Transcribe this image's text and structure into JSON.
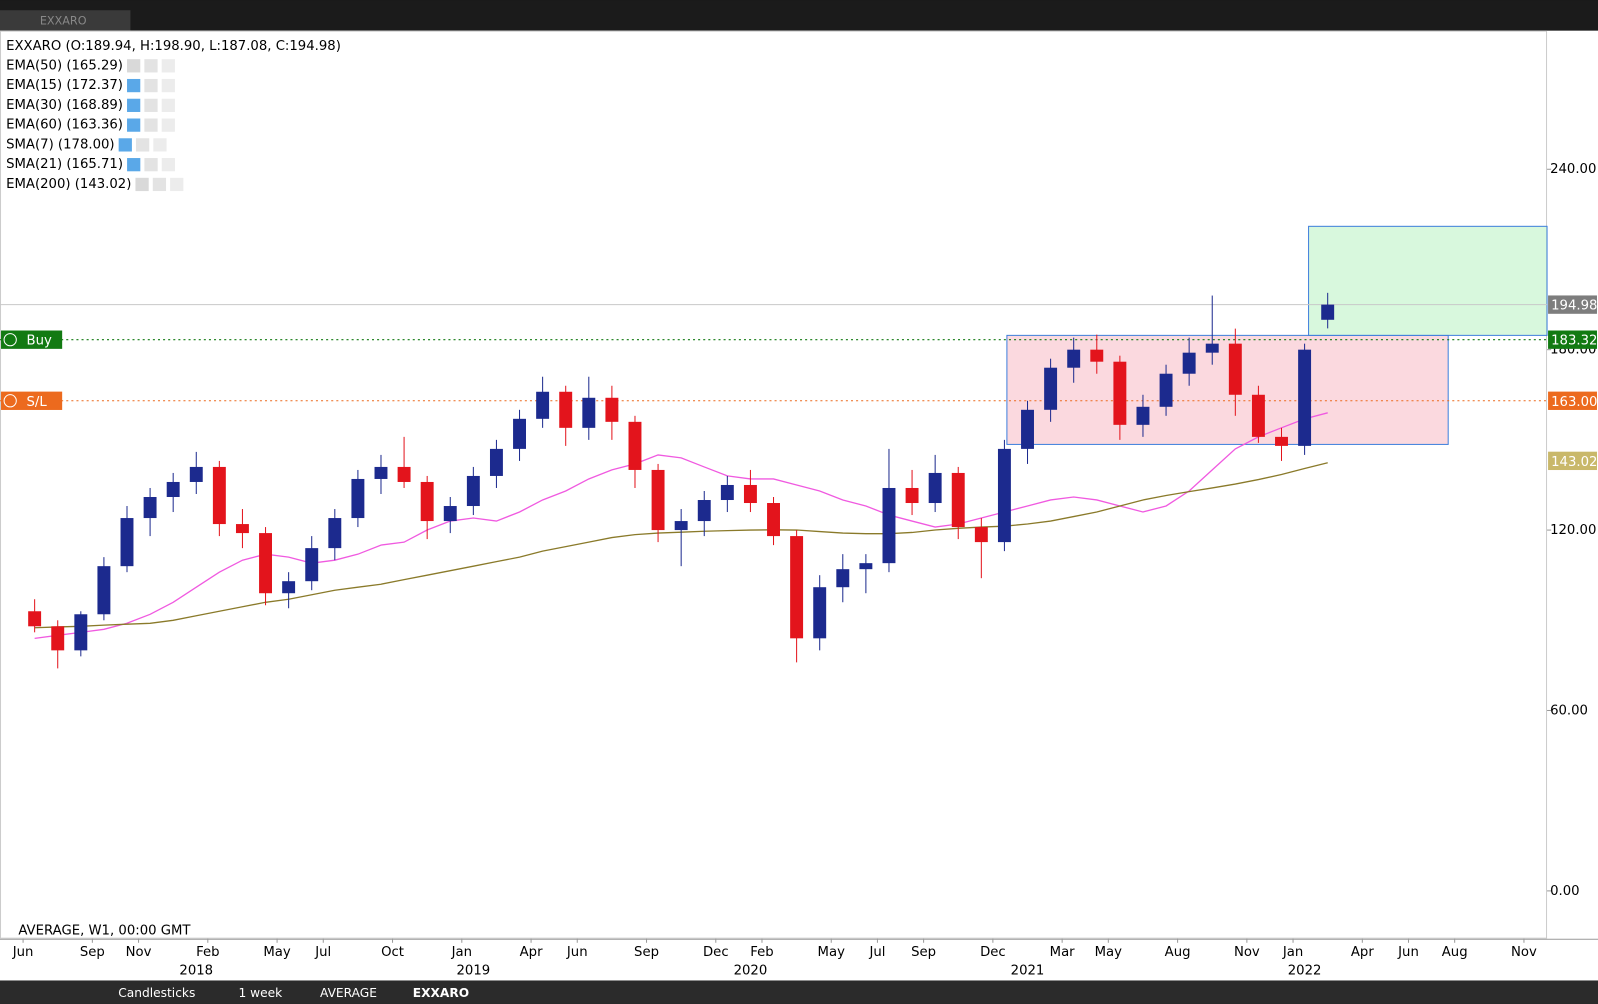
{
  "tab": "EXXARO",
  "chart_data": {
    "type": "candlestick",
    "header": "EXXARO (O:189.94, H:198.90, L:187.08, C:194.98)",
    "indicators": [
      "EMA(50) (165.29)",
      "EMA(15) (172.37)",
      "EMA(30) (168.89)",
      "EMA(60) (163.36)",
      "SMA(7) (178.00)",
      "SMA(21) (165.71)",
      "EMA(200) (143.02)"
    ],
    "footer": "AVERAGE, W1, 00:00 GMT",
    "up_color": "#1c2a8e",
    "down_color": "#e3141c",
    "x": [
      "2017-06",
      "2017-07",
      "2017-08",
      "2017-09",
      "2017-10",
      "2017-11",
      "2017-12",
      "2018-01",
      "2018-02",
      "2018-03",
      "2018-04",
      "2018-05",
      "2018-06",
      "2018-07",
      "2018-08",
      "2018-09",
      "2018-10",
      "2018-11",
      "2018-12",
      "2019-01",
      "2019-02",
      "2019-03",
      "2019-04",
      "2019-05",
      "2019-06",
      "2019-07",
      "2019-08",
      "2019-09",
      "2019-10",
      "2019-11",
      "2019-12",
      "2020-01",
      "2020-02",
      "2020-03",
      "2020-04",
      "2020-05",
      "2020-06",
      "2020-07",
      "2020-08",
      "2020-09",
      "2020-10",
      "2020-11",
      "2020-12",
      "2021-01",
      "2021-02",
      "2021-03",
      "2021-04",
      "2021-05",
      "2021-06",
      "2021-07",
      "2021-08",
      "2021-09",
      "2021-10",
      "2021-11",
      "2021-12",
      "2022-01",
      "2022-02"
    ],
    "open": [
      93,
      88,
      80,
      92,
      108,
      124,
      131,
      136,
      141,
      122,
      119,
      99,
      103,
      114,
      124,
      137,
      141,
      136,
      123,
      128,
      138,
      147,
      157,
      166,
      154,
      164,
      156,
      140,
      120,
      123,
      130,
      135,
      129,
      118,
      84,
      101,
      107,
      109,
      134,
      129,
      139,
      121,
      116,
      147,
      160,
      174,
      180,
      176,
      155,
      161,
      172,
      179,
      182,
      165,
      151,
      148,
      189.94
    ],
    "high": [
      97,
      90,
      93,
      111,
      128,
      134,
      139,
      146,
      143,
      127,
      121,
      106,
      118,
      127,
      140,
      145,
      151,
      138,
      131,
      141,
      150,
      160,
      171,
      168,
      171,
      168,
      158,
      142,
      127,
      133,
      138,
      140,
      131,
      120,
      105,
      112,
      112,
      147,
      140,
      145,
      141,
      124,
      150,
      163,
      177,
      184,
      185,
      178,
      165,
      175,
      184,
      198,
      187,
      168,
      154,
      182,
      198.9
    ],
    "low": [
      86,
      74,
      78,
      90,
      106,
      118,
      126,
      132,
      118,
      114,
      95,
      94,
      100,
      110,
      121,
      132,
      134,
      117,
      119,
      125,
      134,
      143,
      154,
      148,
      150,
      150,
      134,
      116,
      108,
      118,
      126,
      126,
      115,
      76,
      80,
      96,
      99,
      106,
      125,
      126,
      117,
      104,
      113,
      142,
      156,
      169,
      172,
      150,
      151,
      158,
      168,
      175,
      158,
      149,
      143,
      145,
      187.08
    ],
    "close": [
      88,
      80,
      92,
      108,
      124,
      131,
      136,
      141,
      122,
      119,
      99,
      103,
      114,
      124,
      137,
      141,
      136,
      123,
      128,
      138,
      147,
      157,
      166,
      154,
      164,
      156,
      140,
      120,
      123,
      130,
      135,
      129,
      118,
      84,
      101,
      107,
      109,
      134,
      129,
      139,
      121,
      116,
      147,
      160,
      174,
      180,
      176,
      155,
      161,
      172,
      179,
      182,
      165,
      151,
      148,
      180,
      194.98
    ],
    "lines": [
      {
        "name": "EMA(50) (165.29)",
        "color": "#f05ae0",
        "values": [
          84,
          85,
          86,
          87,
          89,
          92,
          96,
          101,
          106,
          110,
          112,
          111,
          109,
          110,
          112,
          115,
          116,
          120,
          123,
          124,
          123,
          126,
          130,
          133,
          137,
          140,
          142,
          145,
          144,
          141,
          138,
          137,
          137,
          135,
          133,
          130,
          128,
          125,
          123,
          121,
          122,
          124,
          126,
          128,
          130,
          131,
          130,
          128,
          126,
          128,
          133,
          140,
          147,
          151,
          154,
          157,
          159
        ]
      },
      {
        "name": "EMA(200) (143.02)",
        "color": "#8a7a2a",
        "values": [
          87.5,
          87.8,
          88,
          88.4,
          88.7,
          89,
          90,
          91.5,
          93,
          94.5,
          96,
          97,
          98.5,
          100,
          101,
          102,
          103.5,
          105,
          106.5,
          108,
          109.5,
          111,
          113,
          114.5,
          116,
          117.5,
          118.5,
          119,
          119.3,
          119.6,
          119.8,
          120,
          120.1,
          120,
          119.5,
          119,
          118.8,
          118.8,
          119.2,
          120,
          120.6,
          121,
          121.3,
          122,
          123,
          124.5,
          126,
          128,
          130,
          131.5,
          132.8,
          134,
          135.3,
          136.8,
          138.5,
          140.5,
          142.4
        ]
      }
    ],
    "xlim": [
      "2017-05",
      "2022-12"
    ],
    "xticks": [
      {
        "value": "2017-06",
        "label": "Jun"
      },
      {
        "value": "2017-09",
        "label": "Sep"
      },
      {
        "value": "2017-11",
        "label": "Nov"
      },
      {
        "value": "2018-02",
        "label": "Feb"
      },
      {
        "value": "2018-05",
        "label": "May"
      },
      {
        "value": "2018-07",
        "label": "Jul"
      },
      {
        "value": "2018-10",
        "label": "Oct"
      },
      {
        "value": "2019-01",
        "label": "Jan"
      },
      {
        "value": "2019-04",
        "label": "Apr"
      },
      {
        "value": "2019-06",
        "label": "Jun"
      },
      {
        "value": "2019-09",
        "label": "Sep"
      },
      {
        "value": "2019-12",
        "label": "Dec"
      },
      {
        "value": "2020-02",
        "label": "Feb"
      },
      {
        "value": "2020-05",
        "label": "May"
      },
      {
        "value": "2020-07",
        "label": "Jul"
      },
      {
        "value": "2020-09",
        "label": "Sep"
      },
      {
        "value": "2020-12",
        "label": "Dec"
      },
      {
        "value": "2021-03",
        "label": "Mar"
      },
      {
        "value": "2021-05",
        "label": "May"
      },
      {
        "value": "2021-08",
        "label": "Aug"
      },
      {
        "value": "2021-11",
        "label": "Nov"
      },
      {
        "value": "2022-01",
        "label": "Jan"
      },
      {
        "value": "2022-04",
        "label": "Apr"
      },
      {
        "value": "2022-06",
        "label": "Jun"
      },
      {
        "value": "2022-08",
        "label": "Aug"
      },
      {
        "value": "2022-11",
        "label": "Nov"
      }
    ],
    "year_ticks": [
      {
        "value": "2018-01",
        "label": "2018"
      },
      {
        "value": "2019-01",
        "label": "2019"
      },
      {
        "value": "2020-01",
        "label": "2020"
      },
      {
        "value": "2021-01",
        "label": "2021"
      },
      {
        "value": "2022-01",
        "label": "2022"
      }
    ],
    "ylim": [
      -15.9,
      286.1
    ],
    "yticks": [
      {
        "value": 0,
        "label": "0.00"
      },
      {
        "value": 60,
        "label": "60.00"
      },
      {
        "value": 120,
        "label": "120.00"
      },
      {
        "value": 180,
        "label": "180.00"
      },
      {
        "value": 240,
        "label": "240.00"
      }
    ],
    "price_markers": [
      {
        "value": 194.98,
        "color": "#7d7d7d",
        "line": "solid"
      },
      {
        "value": 183.32,
        "color": "#127a12",
        "line": "dotted",
        "tag": "Buy"
      },
      {
        "value": 163.0,
        "label": "163.00",
        "color": "#ec6a1e",
        "line": "dotted",
        "tag": "S/L"
      },
      {
        "value": 143.02,
        "color": "#c9b86a"
      }
    ]
  },
  "toolbar": [
    "Candlesticks",
    "1 week",
    "AVERAGE",
    "EXXARO"
  ]
}
